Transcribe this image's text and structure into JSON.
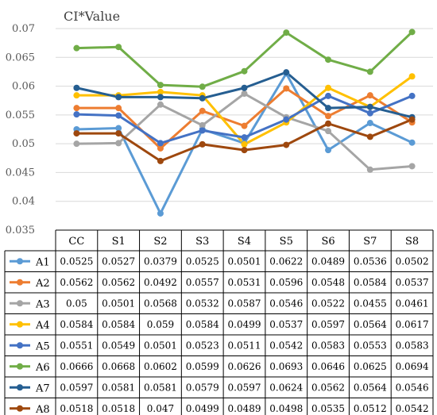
{
  "chart_data": {
    "type": "line",
    "title": "CI*Value",
    "x": [
      "CC",
      "S1",
      "S2",
      "S3",
      "S4",
      "S5",
      "S6",
      "S7",
      "S8"
    ],
    "ylim": [
      0.035,
      0.07
    ],
    "yticks": [
      "0.035",
      "0.04",
      "0.045",
      "0.05",
      "0.055",
      "0.06",
      "0.065",
      "0.07"
    ],
    "grid": true,
    "legend": "data-table",
    "series": [
      {
        "name": "A1",
        "color": "#5B9BD5",
        "values": [
          0.0525,
          0.0527,
          0.0379,
          0.0525,
          0.0501,
          0.0622,
          0.0489,
          0.0536,
          0.0502
        ],
        "labels": [
          "0.0525",
          "0.0527",
          "0.0379",
          "0.0525",
          "0.0501",
          "0.0622",
          "0.0489",
          "0.0536",
          "0.0502"
        ]
      },
      {
        "name": "A2",
        "color": "#ED7D31",
        "values": [
          0.0562,
          0.0562,
          0.0492,
          0.0557,
          0.0531,
          0.0596,
          0.0548,
          0.0584,
          0.0537
        ],
        "labels": [
          "0.0562",
          "0.0562",
          "0.0492",
          "0.0557",
          "0.0531",
          "0.0596",
          "0.0548",
          "0.0584",
          "0.0537"
        ]
      },
      {
        "name": "A3",
        "color": "#A5A5A5",
        "values": [
          0.05,
          0.0501,
          0.0568,
          0.0532,
          0.0587,
          0.0546,
          0.0522,
          0.0455,
          0.0461
        ],
        "labels": [
          "0.05",
          "0.0501",
          "0.0568",
          "0.0532",
          "0.0587",
          "0.0546",
          "0.0522",
          "0.0455",
          "0.0461"
        ]
      },
      {
        "name": "A4",
        "color": "#FFC000",
        "values": [
          0.0584,
          0.0584,
          0.059,
          0.0584,
          0.0499,
          0.0537,
          0.0597,
          0.0564,
          0.0617
        ],
        "labels": [
          "0.0584",
          "0.0584",
          "0.059",
          "0.0584",
          "0.0499",
          "0.0537",
          "0.0597",
          "0.0564",
          "0.0617"
        ]
      },
      {
        "name": "A5",
        "color": "#4472C4",
        "values": [
          0.0551,
          0.0549,
          0.0501,
          0.0523,
          0.0511,
          0.0542,
          0.0583,
          0.0553,
          0.0583
        ],
        "labels": [
          "0.0551",
          "0.0549",
          "0.0501",
          "0.0523",
          "0.0511",
          "0.0542",
          "0.0583",
          "0.0553",
          "0.0583"
        ]
      },
      {
        "name": "A6",
        "color": "#70AD47",
        "values": [
          0.0666,
          0.0668,
          0.0602,
          0.0599,
          0.0626,
          0.0693,
          0.0646,
          0.0625,
          0.0694
        ],
        "labels": [
          "0.0666",
          "0.0668",
          "0.0602",
          "0.0599",
          "0.0626",
          "0.0693",
          "0.0646",
          "0.0625",
          "0.0694"
        ]
      },
      {
        "name": "A7",
        "color": "#255E91",
        "values": [
          0.0597,
          0.0581,
          0.0581,
          0.0579,
          0.0597,
          0.0624,
          0.0562,
          0.0564,
          0.0546
        ],
        "labels": [
          "0.0597",
          "0.0581",
          "0.0581",
          "0.0579",
          "0.0597",
          "0.0624",
          "0.0562",
          "0.0564",
          "0.0546"
        ]
      },
      {
        "name": "A8",
        "color": "#9E480E",
        "values": [
          0.0518,
          0.0518,
          0.047,
          0.0499,
          0.0489,
          0.0498,
          0.0535,
          0.0512,
          0.0542
        ],
        "labels": [
          "0.0518",
          "0.0518",
          "0.047",
          "0.0499",
          "0.0489",
          "0.0498",
          "0.0535",
          "0.0512",
          "0.0542"
        ]
      }
    ]
  }
}
